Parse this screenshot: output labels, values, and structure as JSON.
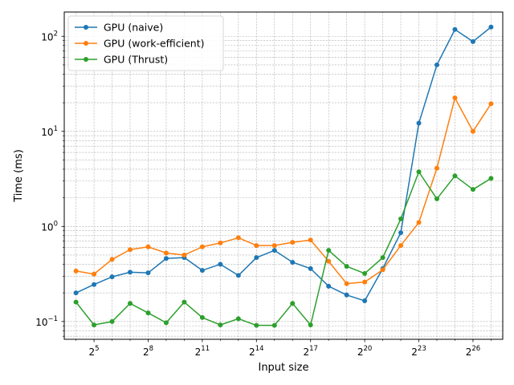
{
  "chart_data": {
    "type": "line",
    "title": "",
    "xlabel": "Input size",
    "ylabel": "Time (ms)",
    "x_scale": "log2",
    "y_scale": "log10",
    "xlim_exp2": [
      3.35,
      27.65
    ],
    "ylim": [
      0.065,
      180
    ],
    "x_ticks": [
      {
        "base": "2",
        "exp": "5",
        "value_exp2": 5
      },
      {
        "base": "2",
        "exp": "8",
        "value_exp2": 8
      },
      {
        "base": "2",
        "exp": "11",
        "value_exp2": 11
      },
      {
        "base": "2",
        "exp": "14",
        "value_exp2": 14
      },
      {
        "base": "2",
        "exp": "17",
        "value_exp2": 17
      },
      {
        "base": "2",
        "exp": "20",
        "value_exp2": 20
      },
      {
        "base": "2",
        "exp": "23",
        "value_exp2": 23
      },
      {
        "base": "2",
        "exp": "26",
        "value_exp2": 26
      }
    ],
    "y_ticks": [
      {
        "base": "10",
        "exp": "−1",
        "value": 0.1
      },
      {
        "base": "10",
        "exp": "0",
        "value": 1
      },
      {
        "base": "10",
        "exp": "1",
        "value": 10
      },
      {
        "base": "10",
        "exp": "2",
        "value": 100
      }
    ],
    "grid": true,
    "legend_position": "top-left",
    "x_exp2": [
      4,
      5,
      6,
      7,
      8,
      9,
      10,
      11,
      12,
      13,
      14,
      15,
      16,
      17,
      18,
      19,
      20,
      21,
      22,
      23,
      24,
      25,
      26,
      27
    ],
    "series": [
      {
        "name": "GPU (naive)",
        "color": "#1f77b4",
        "values": [
          0.2,
          0.245,
          0.295,
          0.33,
          0.325,
          0.46,
          0.47,
          0.345,
          0.4,
          0.305,
          0.47,
          0.56,
          0.42,
          0.36,
          0.235,
          0.19,
          0.165,
          0.36,
          0.86,
          12.2,
          50,
          118,
          88,
          125
        ]
      },
      {
        "name": "GPU (work-efficient)",
        "color": "#ff7f0e",
        "values": [
          0.34,
          0.315,
          0.45,
          0.57,
          0.61,
          0.525,
          0.5,
          0.61,
          0.67,
          0.76,
          0.63,
          0.63,
          0.68,
          0.72,
          0.43,
          0.25,
          0.26,
          0.35,
          0.63,
          1.1,
          4.1,
          22.5,
          10.0,
          19.5
        ]
      },
      {
        "name": "GPU (Thrust)",
        "color": "#2ca02c",
        "values": [
          0.16,
          0.092,
          0.1,
          0.155,
          0.123,
          0.097,
          0.16,
          0.11,
          0.092,
          0.107,
          0.091,
          0.091,
          0.155,
          0.092,
          0.56,
          0.38,
          0.32,
          0.47,
          1.2,
          3.75,
          1.95,
          3.4,
          2.45,
          3.2
        ]
      }
    ]
  }
}
